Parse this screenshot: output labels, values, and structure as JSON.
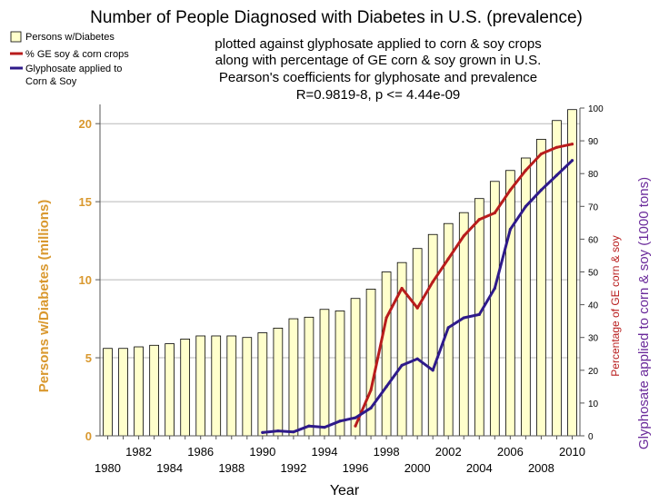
{
  "chart_data": {
    "type": "bar",
    "title": "Number of People Diagnosed with Diabetes in U.S. (prevalence)",
    "subtitle_lines": [
      "plotted against glyphosate applied to corn & soy crops",
      "along with percentage of GE corn & soy grown in U.S.",
      "Pearson's coefficients for glyphosate and prevalence",
      "R=0.9819-8, p <= 4.44e-09"
    ],
    "xlabel": "Year",
    "ylabel_left": "Persons w/Diabetes (millions)",
    "ylabel_right_inner": "Percentage of GE corn & soy",
    "ylabel_right_outer": "Glyphosate applied to corn & soy (1000 tons)",
    "ylim_left": [
      0,
      21
    ],
    "ylim_right": [
      0,
      100
    ],
    "left_ticks": [
      "0",
      "5",
      "10",
      "15",
      "20"
    ],
    "right_ticks": [
      "0",
      "10",
      "20",
      "30",
      "40",
      "50",
      "60",
      "70",
      "80",
      "90",
      "100"
    ],
    "x_ticks_lower": [
      "1980",
      "1984",
      "1988",
      "1992",
      "1996",
      "2000",
      "2004",
      "2008"
    ],
    "x_ticks_upper": [
      "1982",
      "1986",
      "1990",
      "1994",
      "1998",
      "2002",
      "2006",
      "2010"
    ],
    "categories": [
      1980,
      1981,
      1982,
      1983,
      1984,
      1985,
      1986,
      1987,
      1988,
      1989,
      1990,
      1991,
      1992,
      1993,
      1994,
      1995,
      1996,
      1997,
      1998,
      1999,
      2000,
      2001,
      2002,
      2003,
      2004,
      2005,
      2006,
      2007,
      2008,
      2009,
      2010
    ],
    "series": [
      {
        "name": "Persons w/Diabetes",
        "kind": "bar",
        "axis": "left",
        "color": "#ffffcc",
        "x": [
          1980,
          1981,
          1982,
          1983,
          1984,
          1985,
          1986,
          1987,
          1988,
          1989,
          1990,
          1991,
          1992,
          1993,
          1994,
          1995,
          1996,
          1997,
          1998,
          1999,
          2000,
          2001,
          2002,
          2003,
          2004,
          2005,
          2006,
          2007,
          2008,
          2009,
          2010
        ],
        "values": [
          5.6,
          5.6,
          5.7,
          5.8,
          5.9,
          6.2,
          6.4,
          6.4,
          6.4,
          6.3,
          6.6,
          6.9,
          7.5,
          7.6,
          8.1,
          8.0,
          8.8,
          9.4,
          10.5,
          11.1,
          12.0,
          12.9,
          13.6,
          14.3,
          15.2,
          16.3,
          17.0,
          17.8,
          19.0,
          20.2,
          20.9
        ]
      },
      {
        "name": "% GE soy & corn crops",
        "kind": "line",
        "axis": "right",
        "color": "#b81c1c",
        "x": [
          1996,
          1997,
          1998,
          1999,
          2000,
          2001,
          2002,
          2003,
          2004,
          2005,
          2006,
          2007,
          2008,
          2009,
          2010
        ],
        "values": [
          3,
          14,
          36,
          45,
          39,
          47,
          54,
          61,
          66,
          68,
          75,
          81,
          86,
          88,
          89
        ]
      },
      {
        "name": "Glyphosate applied to Corn & Soy",
        "kind": "line",
        "axis": "right",
        "color": "#2e1a8a",
        "x": [
          1990,
          1991,
          1992,
          1993,
          1994,
          1995,
          1996,
          1997,
          1998,
          1999,
          2000,
          2001,
          2002,
          2003,
          2004,
          2005,
          2006,
          2007,
          2008,
          2009,
          2010
        ],
        "values": [
          1,
          1.5,
          1.2,
          3,
          2.6,
          4.5,
          5.5,
          8.5,
          15,
          21.5,
          23.5,
          20,
          33,
          36,
          37,
          45,
          63,
          70,
          75,
          79.5,
          84
        ]
      }
    ],
    "legend": [
      {
        "label": "Persons w/Diabetes",
        "type": "box",
        "color": "#ffffcc"
      },
      {
        "label": "% GE soy & corn crops",
        "type": "line",
        "color": "#b81c1c"
      },
      {
        "label": "Glyphosate applied to",
        "type": "line",
        "color": "#2e1a8a"
      },
      {
        "label": "Corn & Soy",
        "type": "none",
        "color": ""
      }
    ],
    "legend_position": "top-left",
    "grid": true,
    "label_colors": {
      "left": "#d9982e",
      "right_inner": "#b81c1c",
      "right_outer": "#6a2a9a"
    }
  }
}
